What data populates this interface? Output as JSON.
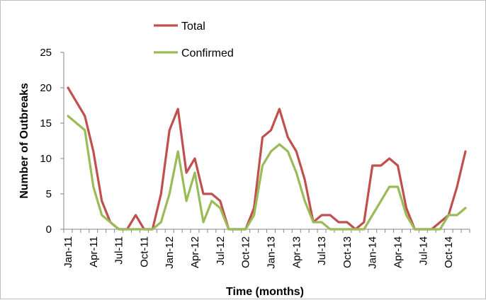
{
  "chart_data": {
    "type": "line",
    "title": "",
    "xlabel": "Time (months)",
    "ylabel": "Number of Outbreaks",
    "ylim": [
      0,
      25
    ],
    "y_ticks": [
      0,
      5,
      10,
      15,
      20,
      25
    ],
    "grid": false,
    "legend_position": "top-left",
    "x_tick_labels": [
      "Jan-11",
      "Apr-11",
      "Jul-11",
      "Oct-11",
      "Jan-12",
      "Apr-12",
      "Jul-12",
      "Oct-12",
      "Jan-13",
      "Apr-13",
      "Jul-13",
      "Oct-13",
      "Jan-14",
      "Apr-14",
      "Jul-14",
      "Oct-14"
    ],
    "x": [
      "Jan-11",
      "Feb-11",
      "Mar-11",
      "Apr-11",
      "May-11",
      "Jun-11",
      "Jul-11",
      "Aug-11",
      "Sep-11",
      "Oct-11",
      "Nov-11",
      "Dec-11",
      "Jan-12",
      "Feb-12",
      "Mar-12",
      "Apr-12",
      "May-12",
      "Jun-12",
      "Jul-12",
      "Aug-12",
      "Sep-12",
      "Oct-12",
      "Nov-12",
      "Dec-12",
      "Jan-13",
      "Feb-13",
      "Mar-13",
      "Apr-13",
      "May-13",
      "Jun-13",
      "Jul-13",
      "Aug-13",
      "Sep-13",
      "Oct-13",
      "Nov-13",
      "Dec-13",
      "Jan-14",
      "Feb-14",
      "Mar-14",
      "Apr-14",
      "May-14",
      "Jun-14",
      "Jul-14",
      "Aug-14",
      "Sep-14",
      "Oct-14",
      "Nov-14",
      "Dec-14"
    ],
    "series": [
      {
        "name": "Total",
        "color": "#c0504d",
        "values": [
          20,
          18,
          16,
          11,
          4,
          1,
          0,
          0,
          2,
          0,
          0,
          5,
          14,
          17,
          8,
          10,
          5,
          5,
          4,
          0,
          0,
          0,
          3,
          13,
          14,
          17,
          13,
          11,
          7,
          1,
          2,
          2,
          1,
          1,
          0,
          1,
          9,
          9,
          10,
          9,
          3,
          0,
          0,
          0,
          1,
          2,
          6,
          11
        ]
      },
      {
        "name": "Confirmed",
        "color": "#9bbb59",
        "values": [
          16,
          15,
          14,
          6,
          2,
          1,
          0,
          0,
          0,
          0,
          0,
          1,
          5,
          11,
          4,
          8,
          1,
          4,
          3,
          0,
          0,
          0,
          2,
          9,
          11,
          12,
          11,
          8,
          4,
          1,
          1,
          0,
          0,
          0,
          0,
          0,
          2,
          4,
          6,
          6,
          2,
          0,
          0,
          0,
          0,
          2,
          2,
          3
        ]
      }
    ]
  }
}
